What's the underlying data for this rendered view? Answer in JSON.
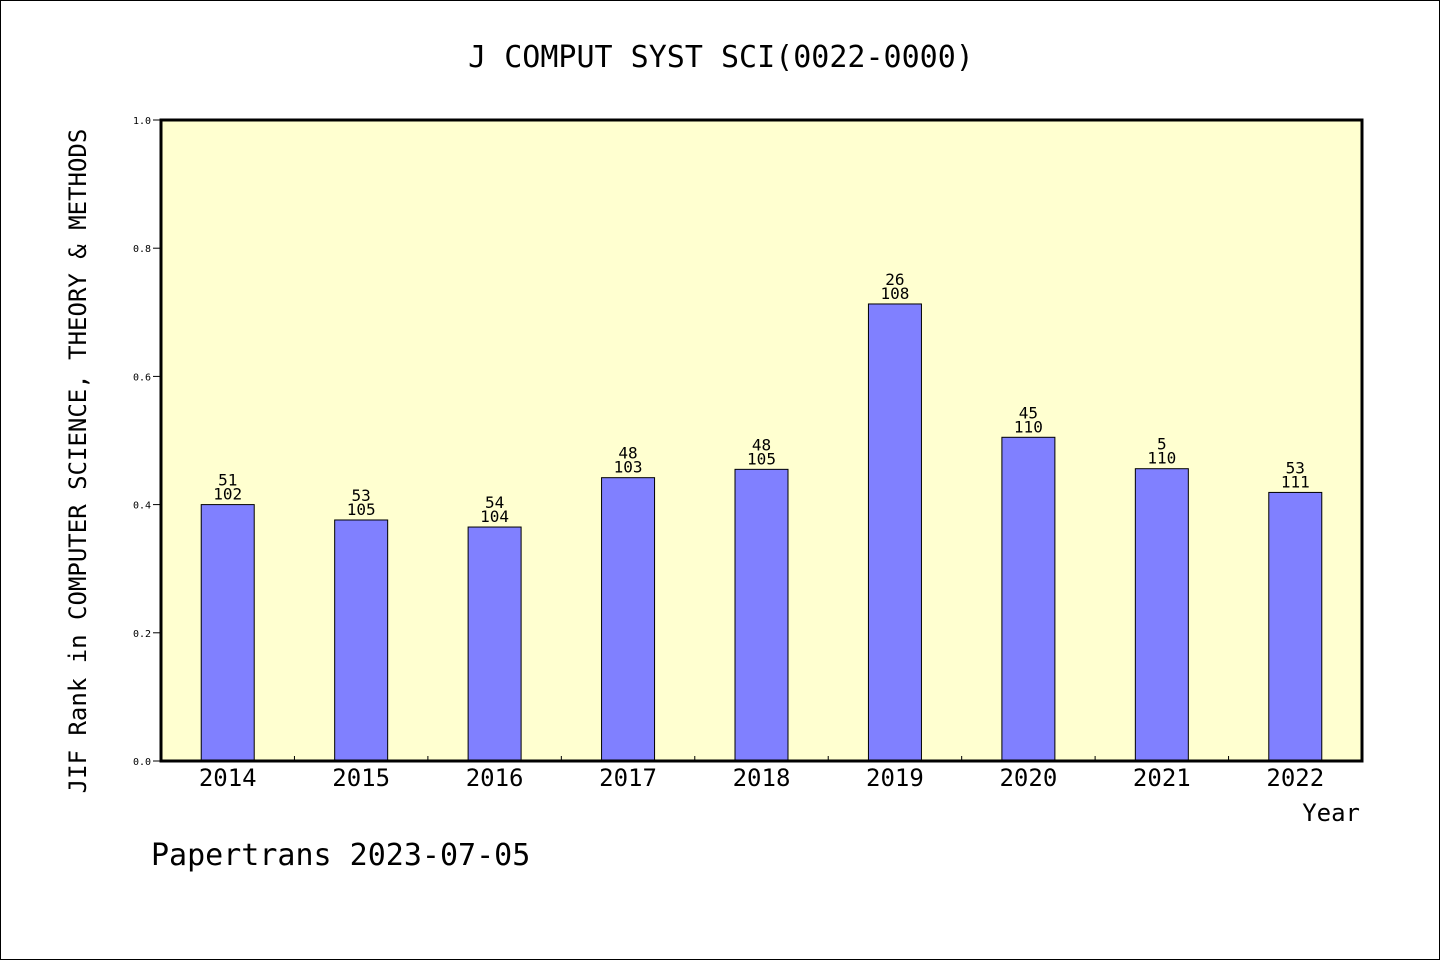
{
  "chart_data": {
    "type": "bar",
    "title": "J COMPUT SYST SCI(0022-0000)",
    "ylabel": "JIF Rank in COMPUTER SCIENCE, THEORY & METHODS",
    "xlabel": "Year",
    "categories": [
      "2014",
      "2015",
      "2016",
      "2017",
      "2018",
      "2019",
      "2020",
      "2021",
      "2022"
    ],
    "values": [
      0.4,
      0.376,
      0.365,
      0.442,
      0.455,
      0.713,
      0.505,
      0.456,
      0.419
    ],
    "label_top": [
      "51",
      "53",
      "54",
      "48",
      "48",
      "26",
      "45",
      "5",
      "53"
    ],
    "label_bottom": [
      "102",
      "105",
      "104",
      "103",
      "105",
      "108",
      "110",
      "110",
      "111"
    ],
    "ylim": [
      0,
      1.0
    ],
    "yticks": [
      "0.0",
      "0.2",
      "0.4",
      "0.6",
      "0.8",
      "1.0"
    ],
    "grid": false,
    "legend": "none",
    "colors": {
      "bar": "#8080ff",
      "plot_bg": "#ffffd0",
      "axis": "#000000"
    }
  },
  "footer": "Papertrans 2023-07-05"
}
